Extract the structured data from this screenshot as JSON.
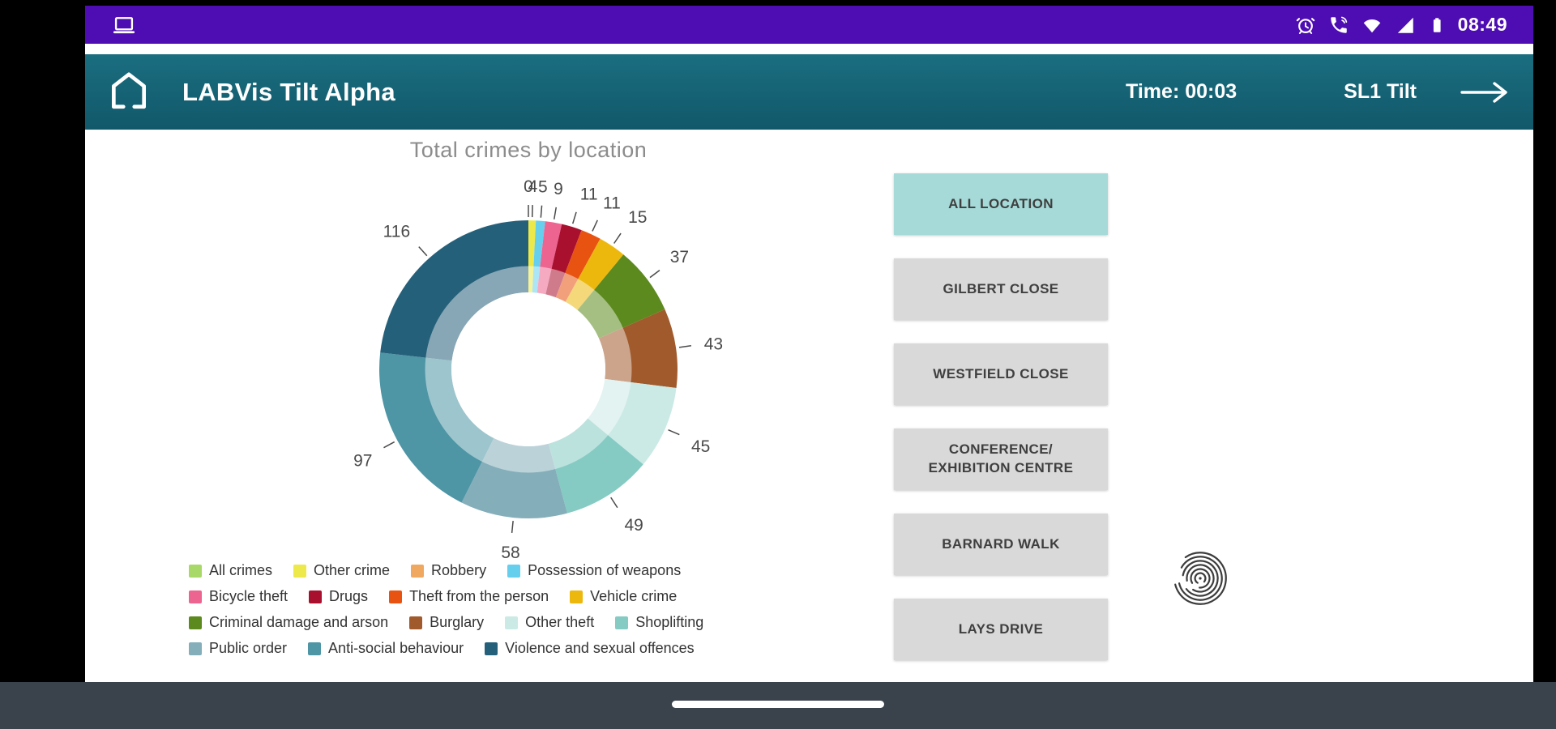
{
  "status_bar": {
    "time": "08:49",
    "icons": [
      "external-display-icon",
      "alarm-icon",
      "wifi-calling-icon",
      "wifi-icon",
      "signal-icon",
      "battery-icon"
    ]
  },
  "header": {
    "title": "LABVis Tilt Alpha",
    "timer_label": "Time: 00:03",
    "mode_label": "SL1 Tilt",
    "icons": [
      "home-icon",
      "arrow-right-icon"
    ]
  },
  "chart_data": {
    "type": "pie",
    "donut": true,
    "title": "Total crimes by location",
    "start_angle_deg": 0,
    "direction": "clockwise",
    "categories": [
      "All crimes",
      "Other crime",
      "Robbery",
      "Possession of weapons",
      "Bicycle theft",
      "Drugs",
      "Theft from the person",
      "Vehicle crime",
      "Criminal damage and arson",
      "Burglary",
      "Other theft",
      "Shoplifting",
      "Public order",
      "Anti-social behaviour",
      "Violence and sexual offences"
    ],
    "values": [
      0,
      4,
      0,
      5,
      9,
      11,
      11,
      15,
      37,
      43,
      45,
      49,
      58,
      97,
      116
    ],
    "colors": [
      "#A8D868",
      "#EDE94B",
      "#F0A860",
      "#66CFEE",
      "#EE6490",
      "#A8102E",
      "#E85311",
      "#EDB80E",
      "#5C8A1E",
      "#A05A2C",
      "#CBEAE6",
      "#85CBC3",
      "#84AEBA",
      "#4E95A5",
      "#25607A"
    ],
    "total": 500,
    "legend_position": "bottom-left",
    "legend_rows": [
      [
        0,
        1,
        2,
        3
      ],
      [
        4,
        5,
        6,
        7
      ],
      [
        8,
        9,
        10,
        11
      ],
      [
        12,
        13,
        14
      ]
    ]
  },
  "locations": {
    "buttons": [
      {
        "label": "ALL LOCATION",
        "lines": [
          "ALL LOCATION"
        ],
        "active": true
      },
      {
        "label": "GILBERT CLOSE",
        "lines": [
          "GILBERT CLOSE"
        ],
        "active": false
      },
      {
        "label": "WESTFIELD CLOSE",
        "lines": [
          "WESTFIELD CLOSE"
        ],
        "active": false
      },
      {
        "label": "CONFERENCE/ EXHIBITION CENTRE",
        "lines": [
          "CONFERENCE/",
          "EXHIBITION CENTRE"
        ],
        "active": false
      },
      {
        "label": "BARNARD WALK",
        "lines": [
          "BARNARD WALK"
        ],
        "active": false
      },
      {
        "label": "LAYS DRIVE",
        "lines": [
          "LAYS DRIVE"
        ],
        "active": false
      }
    ]
  },
  "misc_icons": [
    "fingerprint-icon",
    "gesture-pill"
  ],
  "colors": {
    "status_bar": "#4D0DB2",
    "header_teal": "#15626F",
    "active_button": "#A5DAD8",
    "button": "#D9D9D9",
    "nav_bar": "#3A424B",
    "title_gray": "#8C8C8C"
  }
}
